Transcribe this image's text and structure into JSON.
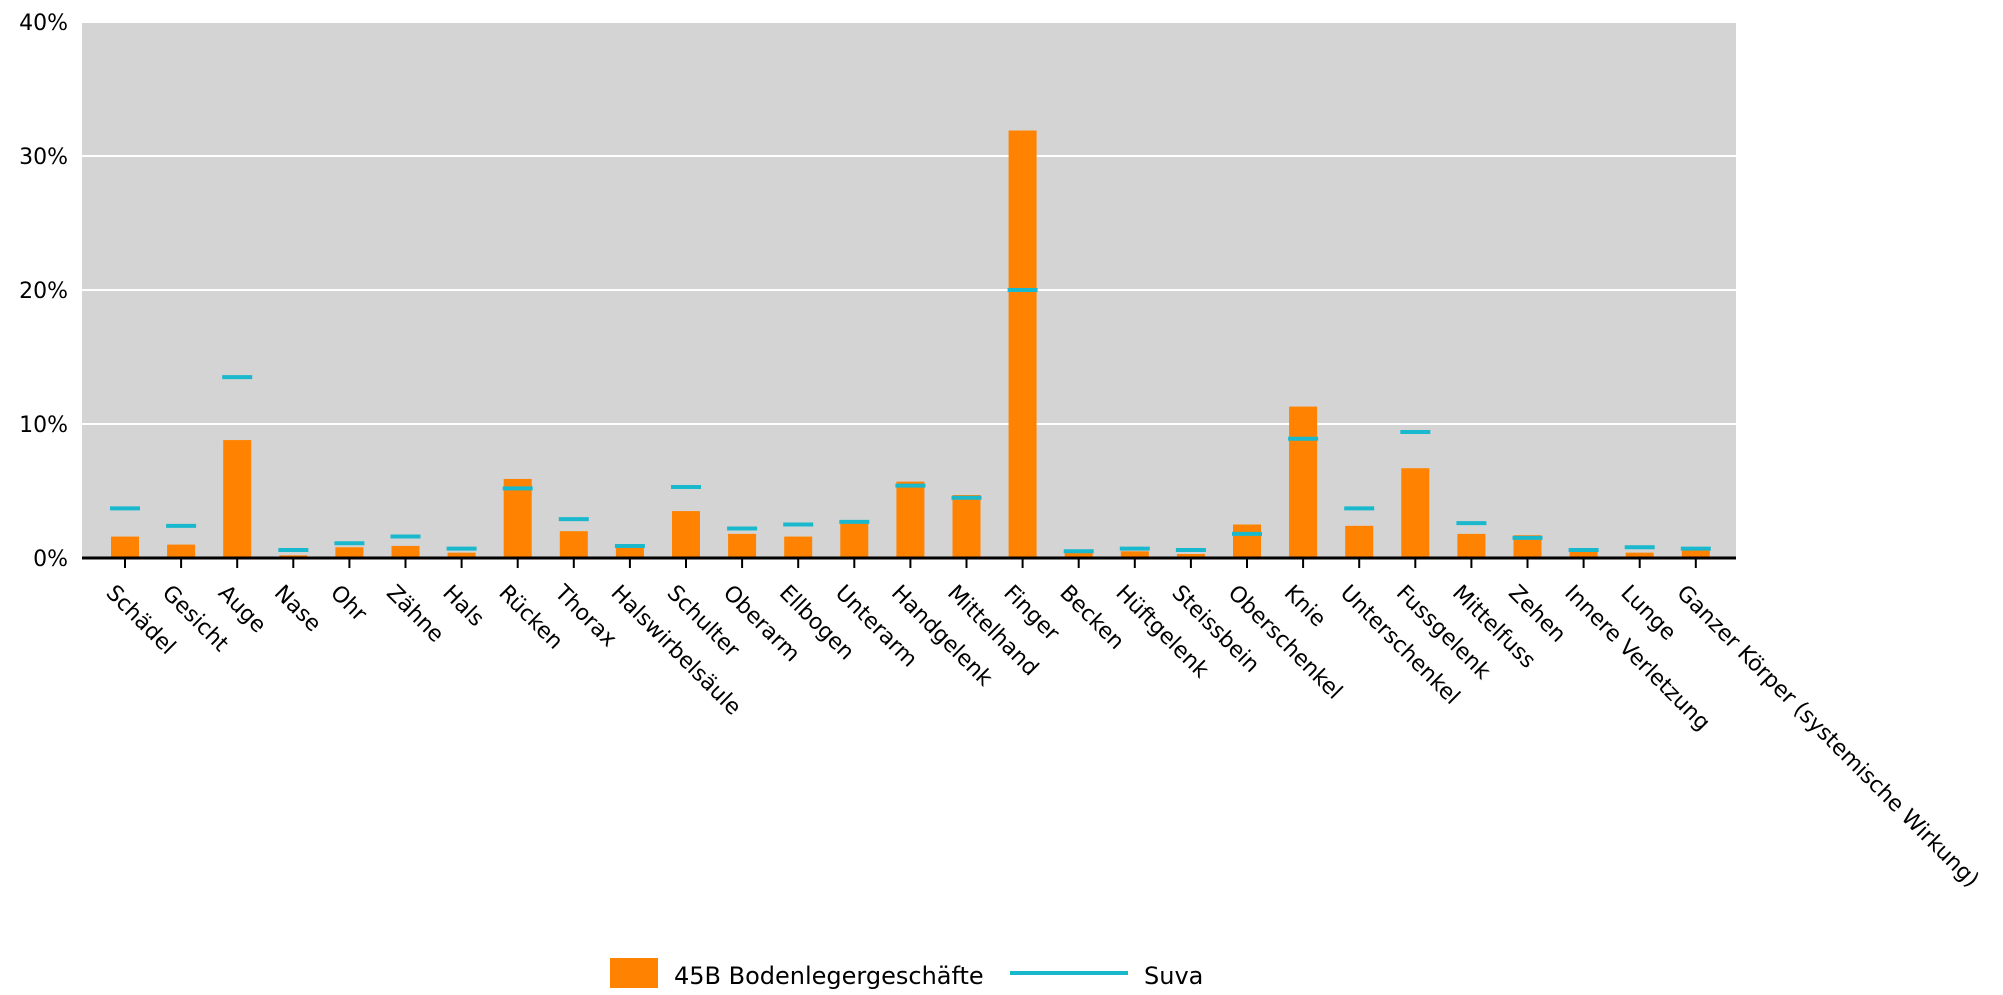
{
  "chart_data": {
    "type": "bar",
    "title": "",
    "xlabel": "",
    "ylabel": "",
    "ylim": [
      0,
      40
    ],
    "yticks": [
      0,
      10,
      20,
      30,
      40
    ],
    "ytick_labels": [
      "0%",
      "10%",
      "20%",
      "30%",
      "40%"
    ],
    "grid": true,
    "legend_position": "bottom-center",
    "categories": [
      "Schädel",
      "Gesicht",
      "Auge",
      "Nase",
      "Ohr",
      "Zähne",
      "Hals",
      "Rücken",
      "Thorax",
      "Halswirbelsäule",
      "Schulter",
      "Oberarm",
      "Ellbogen",
      "Unterarm",
      "Handgelenk",
      "Mittelhand",
      "Finger",
      "Becken",
      "Hüftgelenk",
      "Steissbein",
      "Oberschenkel",
      "Knie",
      "Unterschenkel",
      "Fussgelenk",
      "Mittelfuss",
      "Zehen",
      "Innere Verletzung",
      "Lunge",
      "Ganzer Körper (systemische Wirkung)"
    ],
    "series": [
      {
        "name": "45B Bodenlegergeschäfte",
        "kind": "bar",
        "color": "#ff8200",
        "values": [
          1.6,
          1.0,
          8.8,
          0.2,
          0.8,
          0.9,
          0.4,
          5.9,
          2.0,
          0.8,
          3.5,
          1.8,
          1.6,
          2.8,
          5.7,
          4.7,
          31.9,
          0.4,
          0.5,
          0.3,
          2.5,
          11.3,
          2.4,
          6.7,
          1.8,
          1.7,
          0.5,
          0.4,
          0.6
        ]
      },
      {
        "name": "Suva",
        "kind": "marker",
        "color": "#1ab8cc",
        "values": [
          3.7,
          2.4,
          13.5,
          0.6,
          1.1,
          1.6,
          0.7,
          5.2,
          2.9,
          0.9,
          5.3,
          2.2,
          2.5,
          2.7,
          5.4,
          4.5,
          20.0,
          0.5,
          0.7,
          0.6,
          1.8,
          8.9,
          3.7,
          9.4,
          2.6,
          1.5,
          0.6,
          0.8,
          0.7
        ]
      }
    ]
  }
}
